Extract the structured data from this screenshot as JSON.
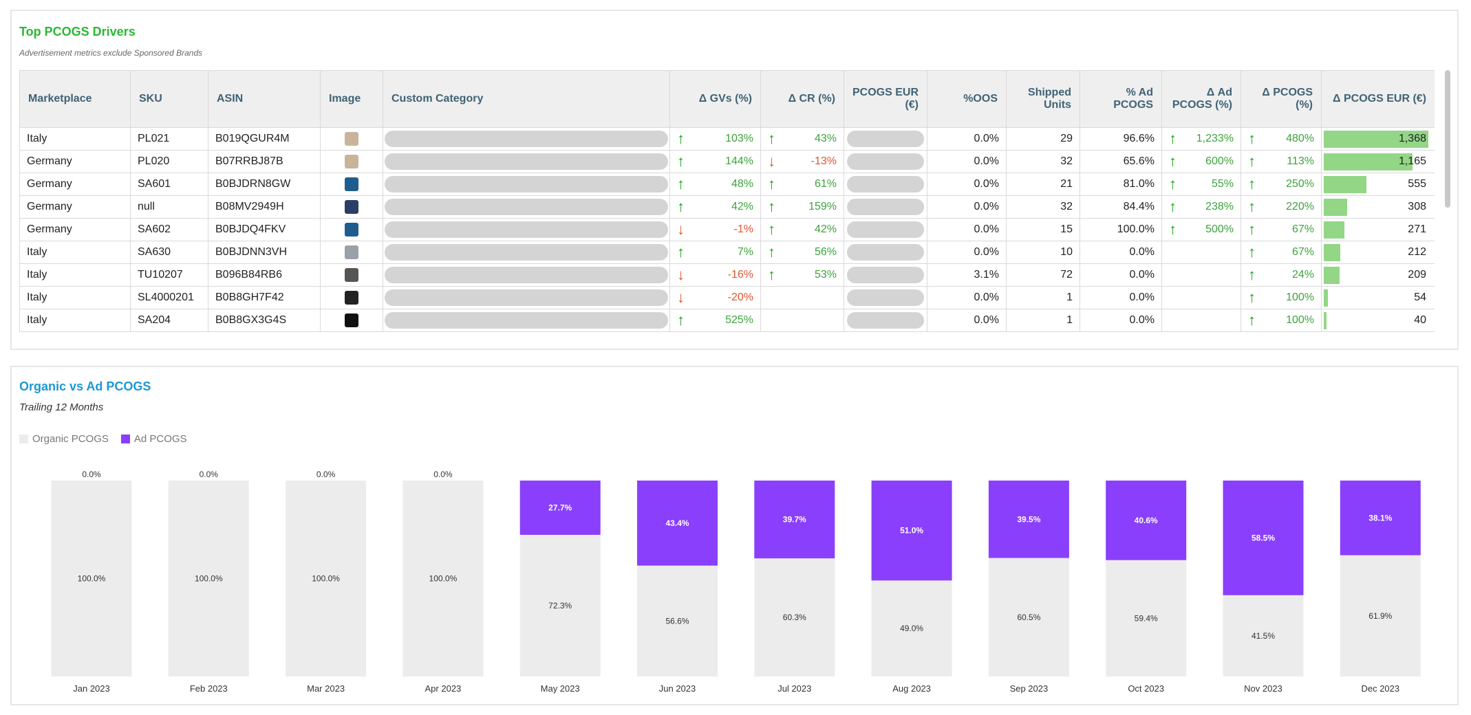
{
  "table_panel": {
    "title": "Top PCOGS Drivers",
    "subtitle": "Advertisement metrics exclude Sponsored Brands",
    "columns": [
      "Marketplace",
      "SKU",
      "ASIN",
      "Image",
      "Custom Category",
      "Δ GVs (%)",
      "Δ CR (%)",
      "PCOGS EUR (€)",
      "%OOS",
      "Shipped Units",
      "% Ad PCOGS",
      "Δ Ad PCOGS (%)",
      "Δ PCOGS (%)",
      "Δ PCOGS EUR (€)"
    ],
    "bar_max": 1368,
    "rows": [
      {
        "marketplace": "Italy",
        "sku": "PL021",
        "asin": "B019QGUR4M",
        "image_color": "#c9b49a",
        "gvs": "103%",
        "gvs_dir": "up",
        "cr": "43%",
        "cr_dir": "up",
        "oos": "0.0%",
        "units": "29",
        "ad_pcogs": "96.6%",
        "ad_chg": "1,233%",
        "ad_dir": "up",
        "pcogs_chg": "480%",
        "pcogs_dir": "up",
        "pcogs_eur": "1,368",
        "pcogs_eur_value": 1368
      },
      {
        "marketplace": "Germany",
        "sku": "PL020",
        "asin": "B07RRBJ87B",
        "image_color": "#c9b49a",
        "gvs": "144%",
        "gvs_dir": "up",
        "cr": "-13%",
        "cr_dir": "down",
        "oos": "0.0%",
        "units": "32",
        "ad_pcogs": "65.6%",
        "ad_chg": "600%",
        "ad_dir": "up",
        "pcogs_chg": "113%",
        "pcogs_dir": "up",
        "pcogs_eur": "1,165",
        "pcogs_eur_value": 1165
      },
      {
        "marketplace": "Germany",
        "sku": "SA601",
        "asin": "B0BJDRN8GW",
        "image_color": "#1f5d8f",
        "gvs": "48%",
        "gvs_dir": "up",
        "cr": "61%",
        "cr_dir": "up",
        "oos": "0.0%",
        "units": "21",
        "ad_pcogs": "81.0%",
        "ad_chg": "55%",
        "ad_dir": "up",
        "pcogs_chg": "250%",
        "pcogs_dir": "up",
        "pcogs_eur": "555",
        "pcogs_eur_value": 555
      },
      {
        "marketplace": "Germany",
        "sku": "null",
        "asin": "B08MV2949H",
        "image_color": "#2b3f66",
        "gvs": "42%",
        "gvs_dir": "up",
        "cr": "159%",
        "cr_dir": "up",
        "oos": "0.0%",
        "units": "32",
        "ad_pcogs": "84.4%",
        "ad_chg": "238%",
        "ad_dir": "up",
        "pcogs_chg": "220%",
        "pcogs_dir": "up",
        "pcogs_eur": "308",
        "pcogs_eur_value": 308
      },
      {
        "marketplace": "Germany",
        "sku": "SA602",
        "asin": "B0BJDQ4FKV",
        "image_color": "#1f5d8f",
        "gvs": "-1%",
        "gvs_dir": "down",
        "cr": "42%",
        "cr_dir": "up",
        "oos": "0.0%",
        "units": "15",
        "ad_pcogs": "100.0%",
        "ad_chg": "500%",
        "ad_dir": "up",
        "pcogs_chg": "67%",
        "pcogs_dir": "up",
        "pcogs_eur": "271",
        "pcogs_eur_value": 271
      },
      {
        "marketplace": "Italy",
        "sku": "SA630",
        "asin": "B0BJDNN3VH",
        "image_color": "#9aa0a8",
        "gvs": "7%",
        "gvs_dir": "up",
        "cr": "56%",
        "cr_dir": "up",
        "oos": "0.0%",
        "units": "10",
        "ad_pcogs": "0.0%",
        "ad_chg": "",
        "ad_dir": "",
        "pcogs_chg": "67%",
        "pcogs_dir": "up",
        "pcogs_eur": "212",
        "pcogs_eur_value": 212
      },
      {
        "marketplace": "Italy",
        "sku": "TU10207",
        "asin": "B096B84RB6",
        "image_color": "#555555",
        "gvs": "-16%",
        "gvs_dir": "down",
        "cr": "53%",
        "cr_dir": "up",
        "oos": "3.1%",
        "units": "72",
        "ad_pcogs": "0.0%",
        "ad_chg": "",
        "ad_dir": "",
        "pcogs_chg": "24%",
        "pcogs_dir": "up",
        "pcogs_eur": "209",
        "pcogs_eur_value": 209
      },
      {
        "marketplace": "Italy",
        "sku": "SL4000201",
        "asin": "B0B8GH7F42",
        "image_color": "#222222",
        "gvs": "-20%",
        "gvs_dir": "down",
        "cr": "",
        "cr_dir": "",
        "oos": "0.0%",
        "units": "1",
        "ad_pcogs": "0.0%",
        "ad_chg": "",
        "ad_dir": "",
        "pcogs_chg": "100%",
        "pcogs_dir": "up",
        "pcogs_eur": "54",
        "pcogs_eur_value": 54
      },
      {
        "marketplace": "Italy",
        "sku": "SA204",
        "asin": "B0B8GX3G4S",
        "image_color": "#111111",
        "gvs": "525%",
        "gvs_dir": "up",
        "cr": "",
        "cr_dir": "",
        "oos": "0.0%",
        "units": "1",
        "ad_pcogs": "0.0%",
        "ad_chg": "",
        "ad_dir": "",
        "pcogs_chg": "100%",
        "pcogs_dir": "up",
        "pcogs_eur": "40",
        "pcogs_eur_value": 40
      }
    ]
  },
  "chart_panel": {
    "title": "Organic vs Ad PCOGS",
    "subtitle": "Trailing 12 Months",
    "legend": [
      {
        "label": "Organic PCOGS",
        "color": "#ececec"
      },
      {
        "label": "Ad PCOGS",
        "color": "#8a3ffc"
      }
    ]
  },
  "chart_data": {
    "type": "bar",
    "stacked": true,
    "percent": true,
    "title": "Organic vs Ad PCOGS",
    "subtitle": "Trailing 12 Months",
    "categories": [
      "Jan 2023",
      "Feb 2023",
      "Mar 2023",
      "Apr 2023",
      "May 2023",
      "Jun 2023",
      "Jul 2023",
      "Aug 2023",
      "Sep 2023",
      "Oct 2023",
      "Nov 2023",
      "Dec 2023"
    ],
    "series": [
      {
        "name": "Organic PCOGS",
        "color": "#ececec",
        "values": [
          100.0,
          100.0,
          100.0,
          100.0,
          72.3,
          56.6,
          60.3,
          49.0,
          60.5,
          59.4,
          41.5,
          61.9
        ],
        "labels": [
          "100.0%",
          "100.0%",
          "100.0%",
          "100.0%",
          "72.3%",
          "56.6%",
          "60.3%",
          "49.0%",
          "60.5%",
          "59.4%",
          "41.5%",
          "61.9%"
        ]
      },
      {
        "name": "Ad PCOGS",
        "color": "#8a3ffc",
        "values": [
          0.0,
          0.0,
          0.0,
          0.0,
          27.7,
          43.4,
          39.7,
          51.0,
          39.5,
          40.6,
          58.5,
          38.1
        ],
        "labels": [
          "0.0%",
          "0.0%",
          "0.0%",
          "0.0%",
          "27.7%",
          "43.4%",
          "39.7%",
          "51.0%",
          "39.5%",
          "40.6%",
          "58.5%",
          "38.1%"
        ]
      }
    ],
    "ylim": [
      0,
      100
    ],
    "legend_position": "top-left"
  }
}
